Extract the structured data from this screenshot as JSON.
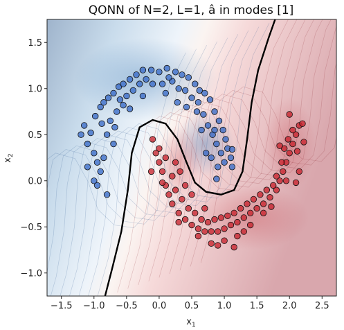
{
  "chart_data": {
    "type": "scatter",
    "title": "QONN of N=2, L=1, â in modes [1]",
    "xlabel": "x",
    "xlabel_sub": "1",
    "ylabel": "x",
    "ylabel_sub": "2",
    "xlim": [
      -1.72,
      2.72
    ],
    "ylim": [
      -1.25,
      1.75
    ],
    "xticks": [
      -1.5,
      -1.0,
      -0.5,
      0.0,
      0.5,
      1.0,
      1.5,
      2.0,
      2.5
    ],
    "xtick_labels": [
      "−1.5",
      "−1.0",
      "−0.5",
      "0.0",
      "0.5",
      "1.0",
      "1.5",
      "2.0",
      "2.5"
    ],
    "yticks": [
      -1.0,
      -0.5,
      0.0,
      0.5,
      1.0,
      1.5
    ],
    "ytick_labels": [
      "−1.0",
      "−0.5",
      "0.0",
      "0.5",
      "1.0",
      "1.5"
    ],
    "grid": false,
    "colors": {
      "class_0": "#3a6bc8",
      "class_1": "#c8242e",
      "boundary": "#000000",
      "background_blue": "#2e6fb0",
      "background_red": "#c0303a"
    },
    "series": [
      {
        "class": 0,
        "points": [
          [
            -1.05,
            0.52
          ],
          [
            -0.98,
            0.7
          ],
          [
            -0.9,
            0.8
          ],
          [
            -0.85,
            0.85
          ],
          [
            -0.78,
            0.9
          ],
          [
            -0.7,
            0.95
          ],
          [
            -0.62,
            1.02
          ],
          [
            -0.55,
            1.05
          ],
          [
            -0.45,
            1.1
          ],
          [
            -0.35,
            1.15
          ],
          [
            -0.25,
            1.2
          ],
          [
            -0.12,
            1.2
          ],
          [
            0.0,
            1.18
          ],
          [
            0.12,
            1.22
          ],
          [
            0.25,
            1.18
          ],
          [
            0.35,
            1.15
          ],
          [
            0.45,
            1.12
          ],
          [
            0.55,
            1.05
          ],
          [
            0.62,
            0.98
          ],
          [
            0.7,
            0.95
          ],
          [
            0.78,
            0.88
          ],
          [
            0.85,
            0.75
          ],
          [
            0.92,
            0.65
          ],
          [
            0.98,
            0.55
          ],
          [
            1.02,
            0.45
          ],
          [
            1.05,
            0.35
          ],
          [
            1.1,
            0.25
          ],
          [
            1.12,
            0.15
          ],
          [
            -1.1,
            0.4
          ],
          [
            -1.0,
            0.3
          ],
          [
            -0.95,
            0.2
          ],
          [
            -0.9,
            0.1
          ],
          [
            -1.0,
            0.0
          ],
          [
            -0.95,
            -0.05
          ],
          [
            -0.85,
            0.25
          ],
          [
            -0.8,
            0.5
          ],
          [
            -0.75,
            0.65
          ],
          [
            -0.7,
            0.4
          ],
          [
            -0.65,
            0.75
          ],
          [
            -0.6,
            0.88
          ],
          [
            -0.5,
            0.92
          ],
          [
            -0.4,
            0.98
          ],
          [
            -0.3,
            1.05
          ],
          [
            -0.2,
            1.1
          ],
          [
            -0.1,
            1.05
          ],
          [
            0.05,
            1.05
          ],
          [
            0.2,
            1.08
          ],
          [
            0.3,
            1.0
          ],
          [
            0.4,
            0.98
          ],
          [
            0.5,
            0.9
          ],
          [
            0.6,
            0.85
          ],
          [
            0.68,
            0.72
          ],
          [
            0.75,
            0.6
          ],
          [
            0.82,
            0.5
          ],
          [
            0.88,
            0.4
          ],
          [
            0.95,
            0.3
          ],
          [
            1.0,
            0.2
          ],
          [
            0.72,
            0.3
          ],
          [
            0.8,
            0.25
          ],
          [
            0.9,
            0.15
          ],
          [
            -1.15,
            0.6
          ],
          [
            -1.2,
            0.5
          ],
          [
            -0.8,
            -0.15
          ],
          [
            -1.1,
            0.15
          ],
          [
            -0.88,
            0.62
          ],
          [
            -0.55,
            0.82
          ],
          [
            0.1,
            0.95
          ],
          [
            0.28,
            0.85
          ],
          [
            0.42,
            0.8
          ],
          [
            0.88,
            0.02
          ],
          [
            1.12,
            0.34
          ],
          [
            0.65,
            0.55
          ],
          [
            -0.45,
            0.78
          ],
          [
            -0.25,
            0.92
          ],
          [
            0.58,
            0.75
          ],
          [
            -0.68,
            0.58
          ],
          [
            0.15,
            1.12
          ],
          [
            0.85,
            0.55
          ]
        ]
      },
      {
        "class": 1,
        "points": [
          [
            -0.1,
            0.45
          ],
          [
            -0.05,
            0.3
          ],
          [
            0.0,
            0.2
          ],
          [
            0.05,
            0.1
          ],
          [
            0.1,
            -0.05
          ],
          [
            0.15,
            -0.15
          ],
          [
            0.2,
            -0.25
          ],
          [
            0.3,
            -0.35
          ],
          [
            0.4,
            -0.42
          ],
          [
            0.5,
            -0.48
          ],
          [
            0.6,
            -0.52
          ],
          [
            0.7,
            -0.55
          ],
          [
            0.8,
            -0.55
          ],
          [
            0.9,
            -0.55
          ],
          [
            1.0,
            -0.52
          ],
          [
            1.1,
            -0.48
          ],
          [
            1.2,
            -0.45
          ],
          [
            1.3,
            -0.4
          ],
          [
            1.4,
            -0.35
          ],
          [
            1.5,
            -0.3
          ],
          [
            1.6,
            -0.25
          ],
          [
            1.7,
            -0.18
          ],
          [
            1.8,
            -0.1
          ],
          [
            1.85,
            0.0
          ],
          [
            1.9,
            0.1
          ],
          [
            1.95,
            0.2
          ],
          [
            2.0,
            0.3
          ],
          [
            2.05,
            0.4
          ],
          [
            2.1,
            0.5
          ],
          [
            2.15,
            0.6
          ],
          [
            0.0,
            0.35
          ],
          [
            0.1,
            0.25
          ],
          [
            0.2,
            0.05
          ],
          [
            0.25,
            -0.1
          ],
          [
            0.35,
            -0.2
          ],
          [
            0.45,
            -0.3
          ],
          [
            0.55,
            -0.35
          ],
          [
            0.65,
            -0.42
          ],
          [
            0.75,
            -0.45
          ],
          [
            0.85,
            -0.42
          ],
          [
            0.95,
            -0.4
          ],
          [
            1.05,
            -0.38
          ],
          [
            1.15,
            -0.35
          ],
          [
            1.25,
            -0.3
          ],
          [
            1.35,
            -0.25
          ],
          [
            1.45,
            -0.2
          ],
          [
            1.55,
            -0.15
          ],
          [
            1.65,
            -0.1
          ],
          [
            1.75,
            -0.05
          ],
          [
            1.8,
            0.05
          ],
          [
            1.88,
            0.2
          ],
          [
            1.92,
            0.35
          ],
          [
            1.98,
            0.45
          ],
          [
            2.05,
            0.55
          ],
          [
            2.12,
            0.32
          ],
          [
            2.15,
            0.1
          ],
          [
            2.22,
            0.42
          ],
          [
            -0.12,
            0.1
          ],
          [
            0.05,
            -0.02
          ],
          [
            0.6,
            -0.6
          ],
          [
            0.8,
            -0.68
          ],
          [
            1.0,
            -0.65
          ],
          [
            1.2,
            -0.6
          ],
          [
            1.4,
            -0.48
          ],
          [
            0.25,
            0.2
          ],
          [
            0.32,
            0.1
          ],
          [
            0.4,
            -0.05
          ],
          [
            0.5,
            -0.15
          ],
          [
            1.6,
            -0.35
          ],
          [
            1.72,
            -0.28
          ],
          [
            2.0,
            0.72
          ],
          [
            2.2,
            0.62
          ],
          [
            1.85,
            0.38
          ],
          [
            2.1,
            -0.02
          ],
          [
            0.3,
            -0.45
          ],
          [
            0.7,
            -0.3
          ],
          [
            1.3,
            -0.55
          ],
          [
            1.95,
            0.0
          ],
          [
            0.9,
            -0.7
          ],
          [
            1.15,
            -0.72
          ]
        ]
      }
    ]
  }
}
